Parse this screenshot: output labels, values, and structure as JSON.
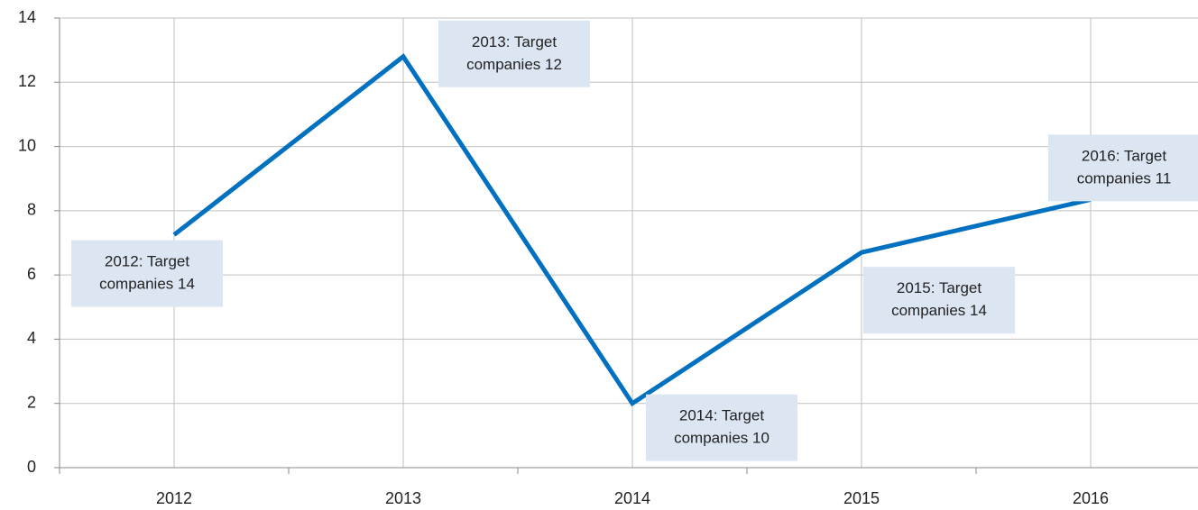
{
  "chart_data": {
    "type": "line",
    "categories": [
      "2012",
      "2013",
      "2014",
      "2015",
      "2016"
    ],
    "series": [
      {
        "color": "#0070c0",
        "values": [
          7.25,
          12.8,
          2.0,
          6.7,
          8.35
        ]
      }
    ],
    "annotations": [
      [
        "2012: Target",
        "companies 14"
      ],
      [
        "2013: Target",
        "companies 12"
      ],
      [
        "2014: Target",
        "companies 10"
      ],
      [
        "2015: Target",
        "companies 14"
      ],
      [
        "2016: Target",
        "companies 11"
      ]
    ],
    "ylim": [
      0,
      14
    ],
    "yticks": [
      0,
      2,
      4,
      6,
      8,
      10,
      12,
      14
    ],
    "grid": true
  }
}
